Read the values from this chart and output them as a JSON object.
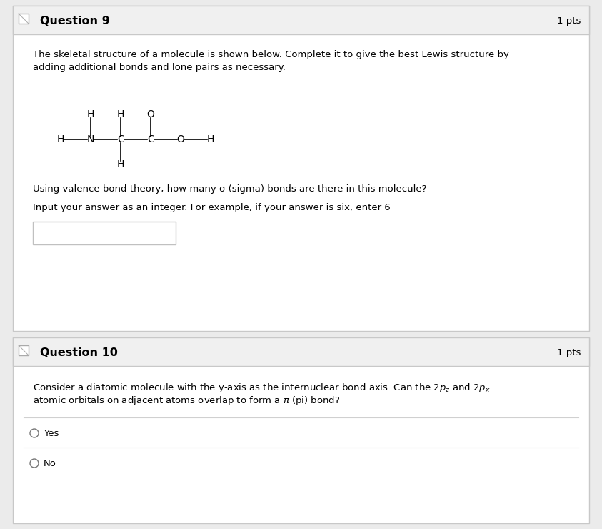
{
  "bg_color": "#ebebeb",
  "white": "#ffffff",
  "header_color": "#f0f0f0",
  "border_color": "#c8c8c8",
  "text_color": "#000000",
  "q9_title": "Question 9",
  "q9_pts": "1 pts",
  "q9_text1": "The skeletal structure of a molecule is shown below. Complete it to give the best Lewis structure by",
  "q9_text2": "adding additional bonds and lone pairs as necessary.",
  "q9_text3": "Using valence bond theory, how many σ (sigma) bonds are there in this molecule?",
  "q9_text4": "Input your answer as an integer. For example, if your answer is six, enter 6",
  "q10_title": "Question 10",
  "q10_pts": "1 pts",
  "q10_yes": "Yes",
  "q10_no": "No",
  "font_size_title": 11.5,
  "font_size_body": 9.5,
  "font_size_mol": 10
}
